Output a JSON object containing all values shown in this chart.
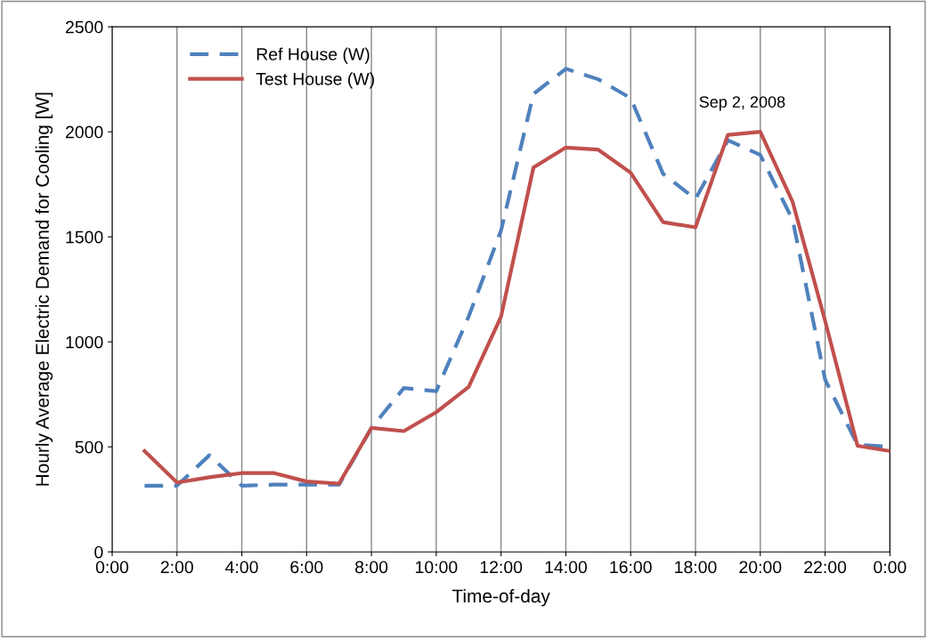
{
  "chart_data": {
    "type": "line",
    "xlabel": "Time-of-day",
    "ylabel": "Hourly Average Electric Demand for Cooling [W]",
    "x": [
      1,
      2,
      3,
      4,
      5,
      6,
      7,
      8,
      9,
      10,
      11,
      12,
      13,
      14,
      15,
      16,
      17,
      18,
      19,
      20,
      21,
      22,
      23,
      24
    ],
    "series": [
      {
        "name": "Ref House (W)",
        "color": "#4f81bd",
        "line_style": "dashed",
        "values": [
          315,
          315,
          460,
          315,
          320,
          320,
          320,
          590,
          780,
          765,
          1120,
          1530,
          2180,
          2300,
          2250,
          2160,
          1800,
          1680,
          1960,
          1890,
          1580,
          820,
          510,
          500
        ]
      },
      {
        "name": "Test House (W)",
        "color": "#c0504d",
        "line_style": "solid",
        "values": [
          480,
          330,
          355,
          375,
          375,
          335,
          325,
          590,
          575,
          665,
          785,
          1120,
          1830,
          1925,
          1915,
          1805,
          1570,
          1545,
          1985,
          2000,
          1665,
          1100,
          505,
          480
        ]
      }
    ],
    "xlim": [
      0,
      24
    ],
    "xticks": [
      {
        "value": 0,
        "label": "0:00"
      },
      {
        "value": 2,
        "label": "2:00"
      },
      {
        "value": 4,
        "label": "4:00"
      },
      {
        "value": 6,
        "label": "6:00"
      },
      {
        "value": 8,
        "label": "8:00"
      },
      {
        "value": 10,
        "label": "10:00"
      },
      {
        "value": 12,
        "label": "12:00"
      },
      {
        "value": 14,
        "label": "14:00"
      },
      {
        "value": 16,
        "label": "16:00"
      },
      {
        "value": 18,
        "label": "18:00"
      },
      {
        "value": 20,
        "label": "20:00"
      },
      {
        "value": 22,
        "label": "22:00"
      },
      {
        "value": 24,
        "label": "0:00"
      }
    ],
    "ylim": [
      0,
      2500
    ],
    "yticks": [
      0,
      500,
      1000,
      1500,
      2000,
      2500
    ],
    "grid": "x",
    "legend": "top left",
    "marker": "none",
    "annotations": [
      "Sep 2, 2008"
    ]
  }
}
